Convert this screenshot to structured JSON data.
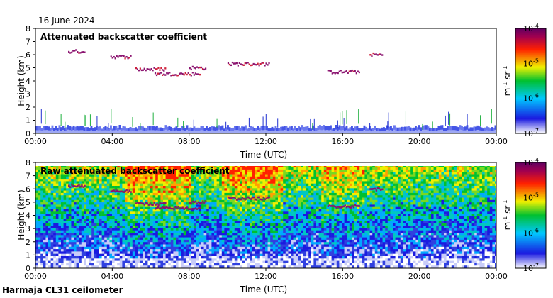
{
  "date_label": "16 June 2024",
  "footer_label": "Harmaja CL31 ceilometer",
  "chart_data": [
    {
      "type": "heatmap",
      "title": "Attenuated backscatter coefficient",
      "xlabel": "Time (UTC)",
      "ylabel": "Height (km)",
      "xticks": [
        "00:00",
        "04:00",
        "08:00",
        "12:00",
        "16:00",
        "20:00",
        "00:00"
      ],
      "xlim_hours": [
        0,
        24
      ],
      "yticks": [
        "0",
        "1",
        "2",
        "3",
        "4",
        "5",
        "6",
        "7",
        "8"
      ],
      "ylim_km": [
        0,
        8
      ],
      "colorbar": {
        "label_base": "m",
        "label_exp1": "-1",
        "label_mid": " sr",
        "label_exp2": "-1",
        "ticks": [
          "10",
          "10",
          "10",
          "10"
        ],
        "tick_exps": [
          "-4",
          "-5",
          "-6",
          "-7"
        ],
        "scale": "log"
      },
      "cloud_layers_km": [
        {
          "t0": 1.7,
          "t1": 2.6,
          "h": 6.3
        },
        {
          "t0": 3.9,
          "t1": 5.0,
          "h": 5.9
        },
        {
          "t0": 5.2,
          "t1": 6.8,
          "h": 4.95
        },
        {
          "t0": 6.2,
          "t1": 8.6,
          "h": 4.6
        },
        {
          "t0": 8.0,
          "t1": 8.9,
          "h": 5.05
        },
        {
          "t0": 10.0,
          "t1": 12.2,
          "h": 5.35
        },
        {
          "t0": 15.2,
          "t1": 16.9,
          "h": 4.75
        },
        {
          "t0": 17.4,
          "t1": 18.1,
          "h": 6.05
        }
      ]
    },
    {
      "type": "heatmap",
      "title": "Raw attenuated backscatter coefficient",
      "xlabel": "Time (UTC)",
      "ylabel": "Height (km)",
      "xticks": [
        "00:00",
        "04:00",
        "08:00",
        "12:00",
        "16:00",
        "20:00",
        "00:00"
      ],
      "xlim_hours": [
        0,
        24
      ],
      "yticks": [
        "0",
        "1",
        "2",
        "3",
        "4",
        "5",
        "6",
        "7",
        "8"
      ],
      "ylim_km": [
        0,
        8
      ],
      "colorbar": {
        "label_base": "m",
        "label_exp1": "-1",
        "label_mid": " sr",
        "label_exp2": "-1",
        "ticks": [
          "10",
          "10",
          "10",
          "10"
        ],
        "tick_exps": [
          "-4",
          "-5",
          "-6",
          "-7"
        ],
        "scale": "log"
      }
    }
  ],
  "colors": {
    "cloud": "#8b1470",
    "noise_low": "#3f4fe0",
    "noise_high": "#d8101a"
  }
}
